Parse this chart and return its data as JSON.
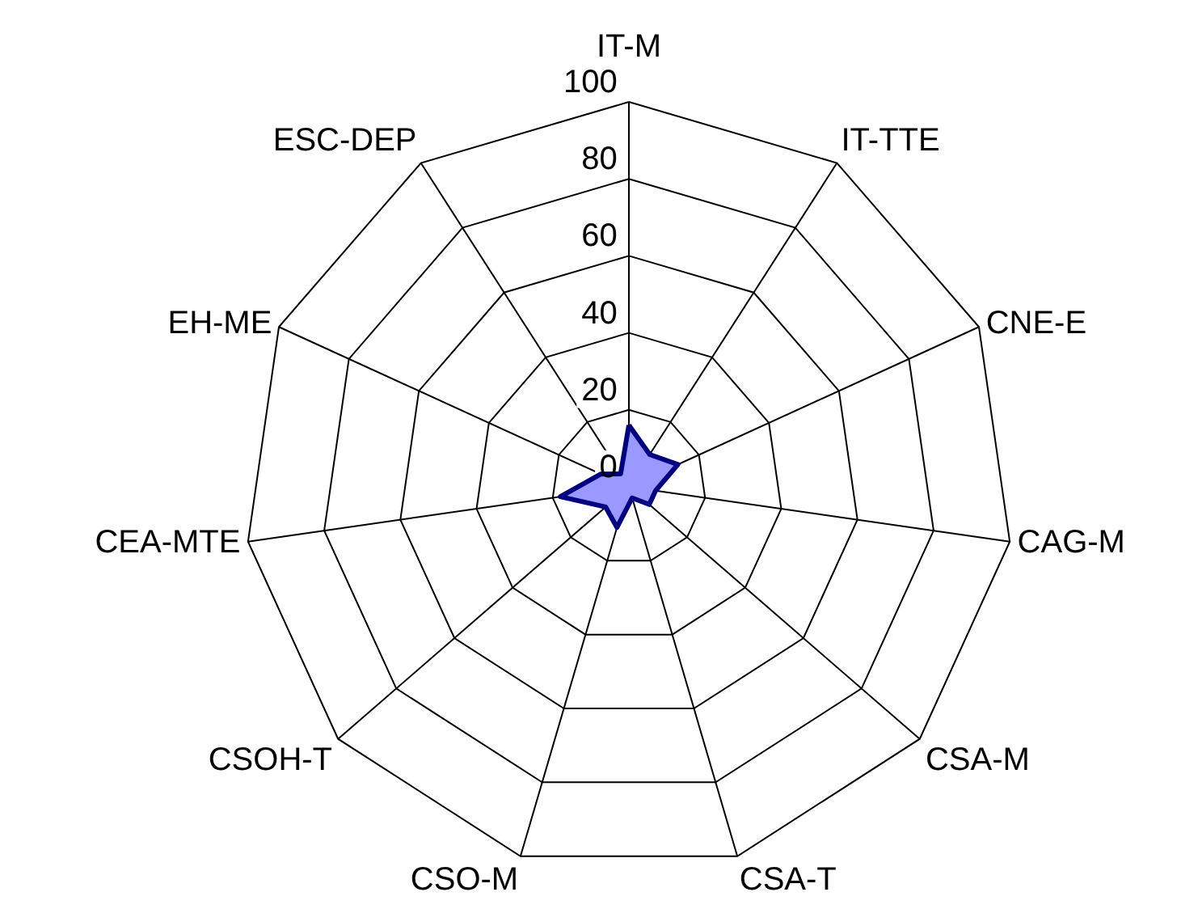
{
  "chart_data": {
    "type": "radar",
    "categories": [
      "IT-M",
      "IT-TTE",
      "CNE-E",
      "CAG-M",
      "CSA-M",
      "CSA-T",
      "CSO-M",
      "CSOH-T",
      "CEA-MTE",
      "EH-ME",
      "ESC-DEP"
    ],
    "series": [
      {
        "color": "#9999ff",
        "values": [
          16,
          10,
          14,
          7,
          7,
          3,
          11,
          8,
          18,
          8,
          4
        ]
      }
    ],
    "ylim": [
      0,
      100
    ],
    "yticks": [
      0,
      20,
      40,
      60,
      80,
      100
    ],
    "grid": true
  }
}
